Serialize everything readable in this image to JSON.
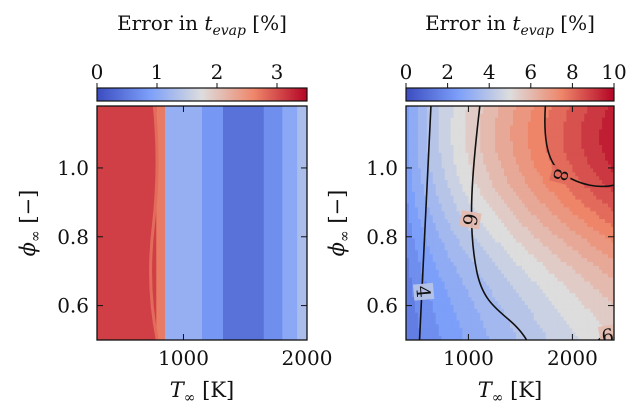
{
  "chart_data": [
    {
      "type": "heatmap",
      "colormap": "coolwarm",
      "colorbar": {
        "title_prefix": "Error in ",
        "title_var": "t",
        "title_sub": "evap",
        "title_unit": "[%]",
        "ticks": [
          0,
          1,
          2,
          3
        ],
        "range": [
          0,
          3.5
        ],
        "placement": "top"
      },
      "xlabel": {
        "var": "T",
        "sub": "∞",
        "unit": "[K]"
      },
      "ylabel": {
        "var": "ϕ",
        "sub": "∞",
        "unit": "[−]"
      },
      "x_ticks": [
        1000,
        2000
      ],
      "y_ticks": [
        0.6,
        0.8,
        1.0
      ],
      "y_tick_labels": [
        "0.6",
        "0.8",
        "1.0"
      ],
      "xlim": [
        300,
        2000
      ],
      "ylim": [
        0.5,
        1.18
      ],
      "bands_along_T": [
        {
          "x0": 300,
          "x1": 780,
          "value": 3.1
        },
        {
          "x0": 780,
          "x1": 850,
          "value": 2.7
        },
        {
          "x0": 850,
          "x1": 1150,
          "value": 1.1
        },
        {
          "x0": 1150,
          "x1": 1320,
          "value": 0.8
        },
        {
          "x0": 1320,
          "x1": 1650,
          "value": 0.4
        },
        {
          "x0": 1650,
          "x1": 1800,
          "value": 0.7
        },
        {
          "x0": 1800,
          "x1": 1920,
          "value": 1.0
        },
        {
          "x0": 1920,
          "x1": 2000,
          "value": 1.3
        }
      ]
    },
    {
      "type": "heatmap",
      "colormap": "coolwarm",
      "colorbar": {
        "title_prefix": "Error in ",
        "title_var": "t",
        "title_sub": "evap",
        "title_unit": "[%]",
        "ticks": [
          0,
          2,
          4,
          6,
          8,
          10
        ],
        "range": [
          0,
          10
        ],
        "placement": "top"
      },
      "xlabel": {
        "var": "T",
        "sub": "∞",
        "unit": "[K]"
      },
      "ylabel": {
        "var": "ϕ",
        "sub": "∞",
        "unit": "[−]"
      },
      "x_ticks": [
        1000,
        2000
      ],
      "y_ticks": [
        0.6,
        0.8,
        1.0
      ],
      "y_tick_labels": [
        "0.6",
        "0.8",
        "1.0"
      ],
      "xlim": [
        400,
        2400
      ],
      "ylim": [
        0.5,
        1.18
      ],
      "contour_levels": [
        4,
        6,
        8
      ],
      "contour_labels": [
        "4",
        "6",
        "8",
        "6"
      ],
      "peak": {
        "T": 2200,
        "phi": 1.08,
        "value": 8.6
      }
    }
  ]
}
